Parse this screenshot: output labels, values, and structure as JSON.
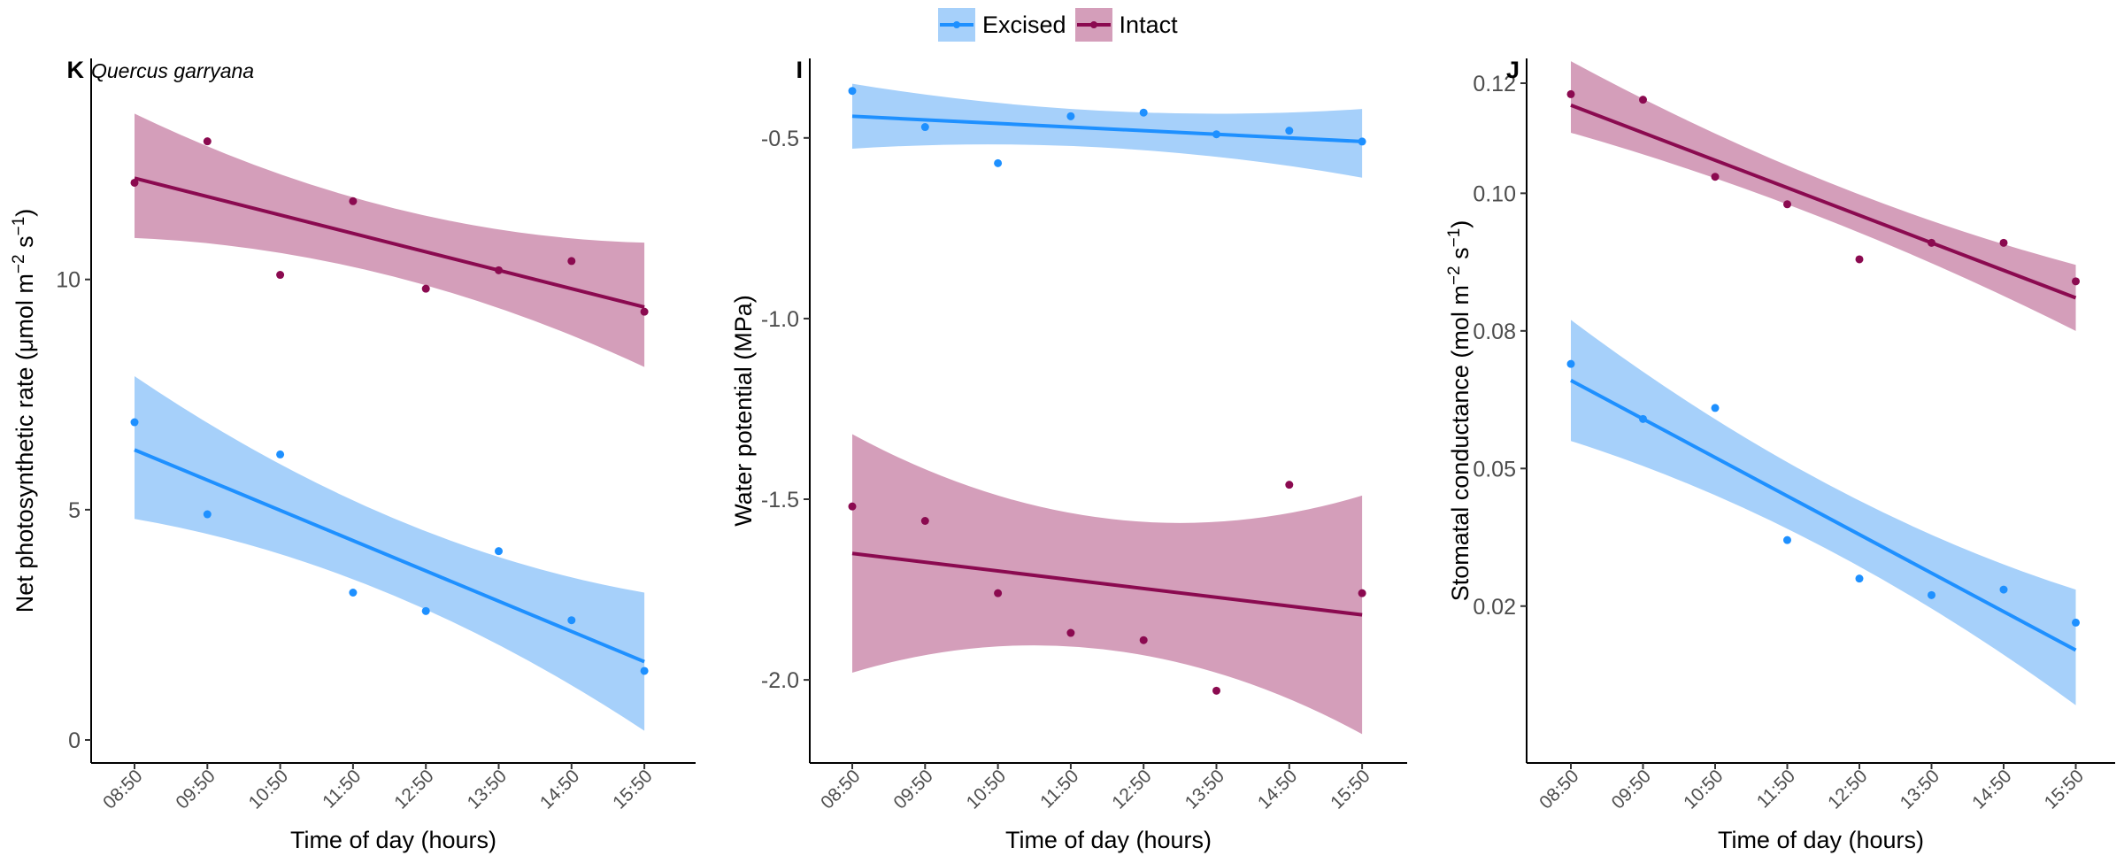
{
  "legend": {
    "items": [
      {
        "label": "Excised",
        "line_color": "#1E90FF",
        "band_color": "#A6D0FA"
      },
      {
        "label": "Intact",
        "line_color": "#8B0A50",
        "band_color": "#D49EBA"
      }
    ]
  },
  "chart_data": [
    {
      "type": "scatter",
      "panel_label": "K",
      "title": "Quercus garryana",
      "xlabel": "Time of day (hours)",
      "ylabel": "Net photosynthetic rate (μmol m⁻² s⁻¹)",
      "x_categories": [
        "08:50",
        "09:50",
        "10:50",
        "11:50",
        "12:50",
        "13:50",
        "14:50",
        "15:50"
      ],
      "ylim": [
        -0.5,
        14.8
      ],
      "yticks": [
        0,
        5,
        10
      ],
      "ytick_labels": [
        "0",
        "5",
        "10"
      ],
      "series": [
        {
          "name": "Excised",
          "color": "#1E90FF",
          "band_color": "#A6D0FA",
          "points": [
            6.9,
            4.9,
            6.2,
            3.2,
            2.8,
            4.1,
            2.6,
            1.5
          ],
          "fit": [
            6.3,
            1.7
          ],
          "ci_lower": [
            4.8,
            0.2
          ],
          "ci_upper": [
            7.9,
            3.2
          ]
        },
        {
          "name": "Intact",
          "color": "#8B0A50",
          "band_color": "#D49EBA",
          "points": [
            12.1,
            13.0,
            10.1,
            11.7,
            9.8,
            10.2,
            10.4,
            9.3
          ],
          "fit": [
            12.2,
            9.4
          ],
          "ci_lower": [
            10.9,
            8.1
          ],
          "ci_upper": [
            13.6,
            10.8
          ]
        }
      ]
    },
    {
      "type": "scatter",
      "panel_label": "I",
      "title": "",
      "xlabel": "Time of day (hours)",
      "ylabel": "Water potential (MPa)",
      "x_categories": [
        "08:50",
        "09:50",
        "10:50",
        "11:50",
        "12:50",
        "13:50",
        "14:50",
        "15:50"
      ],
      "ylim": [
        -2.23,
        -0.28
      ],
      "yticks": [
        -2.0,
        -1.5,
        -1.0,
        -0.5
      ],
      "ytick_labels": [
        "-2.0",
        "-1.5",
        "-1.0",
        "-0.5"
      ],
      "series": [
        {
          "name": "Excised",
          "color": "#1E90FF",
          "band_color": "#A6D0FA",
          "points": [
            -0.37,
            -0.47,
            -0.57,
            -0.44,
            -0.43,
            -0.49,
            -0.48,
            -0.51
          ],
          "fit": [
            -0.44,
            -0.51
          ],
          "ci_lower": [
            -0.53,
            -0.61
          ],
          "ci_upper": [
            -0.35,
            -0.42
          ]
        },
        {
          "name": "Intact",
          "color": "#8B0A50",
          "band_color": "#D49EBA",
          "points": [
            -1.52,
            -1.56,
            -1.76,
            -1.87,
            -1.89,
            -2.03,
            -1.46,
            -1.76
          ],
          "fit": [
            -1.65,
            -1.82
          ],
          "ci_lower": [
            -1.98,
            -2.15
          ],
          "ci_upper": [
            -1.32,
            -1.49
          ]
        }
      ]
    },
    {
      "type": "scatter",
      "panel_label": "J",
      "title": "",
      "xlabel": "Time of day (hours)",
      "ylabel": "Stomatal conductance (mol m⁻² s⁻¹)",
      "x_categories": [
        "08:50",
        "09:50",
        "10:50",
        "11:50",
        "12:50",
        "13:50",
        "14:50",
        "15:50"
      ],
      "ylim": [
        -0.0035,
        0.1245
      ],
      "yticks": [
        0.025,
        0.05,
        0.075,
        0.1,
        0.12
      ],
      "ytick_labels": [
        "0.02",
        "0.05",
        "0.08",
        "0.10",
        "0.12"
      ],
      "series": [
        {
          "name": "Excised",
          "color": "#1E90FF",
          "band_color": "#A6D0FA",
          "points": [
            0.069,
            0.059,
            0.061,
            0.037,
            0.03,
            0.027,
            0.028,
            0.022
          ],
          "fit": [
            0.066,
            0.017
          ],
          "ci_lower": [
            0.055,
            0.007
          ],
          "ci_upper": [
            0.077,
            0.028
          ]
        },
        {
          "name": "Intact",
          "color": "#8B0A50",
          "band_color": "#D49EBA",
          "points": [
            0.118,
            0.117,
            0.103,
            0.098,
            0.088,
            0.091,
            0.091,
            0.084
          ],
          "fit": [
            0.116,
            0.081
          ],
          "ci_lower": [
            0.111,
            0.075
          ],
          "ci_upper": [
            0.124,
            0.087
          ]
        }
      ]
    }
  ]
}
